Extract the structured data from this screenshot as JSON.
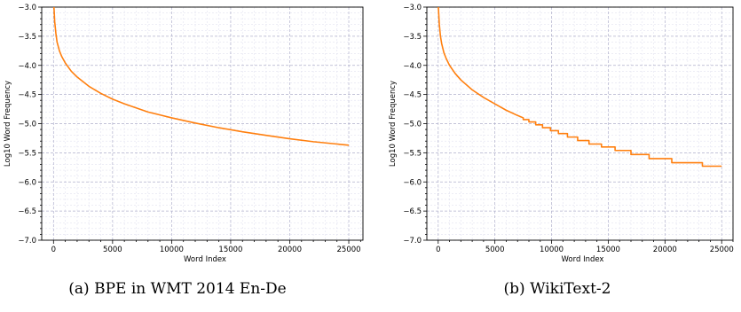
{
  "colors": {
    "line": "#ff7f0e",
    "major_grid": "#b0b0cc",
    "minor_grid": "#e2e2f0",
    "axis": "#000000"
  },
  "chart_data": [
    {
      "type": "line",
      "caption": "(a) BPE in WMT 2014 En-De",
      "xlabel": "Word Index",
      "ylabel": "Log10 Word Frequency",
      "xlim": [
        -1000,
        26200
      ],
      "ylim": [
        -7.0,
        -3.0
      ],
      "xticks": [
        0,
        5000,
        10000,
        15000,
        20000,
        25000
      ],
      "xtick_labels": [
        "0",
        "5000",
        "10000",
        "15000",
        "20000",
        "25000"
      ],
      "yticks": [
        -7.0,
        -6.5,
        -6.0,
        -5.5,
        -5.0,
        -4.5,
        -4.0,
        -3.5,
        -3.0
      ],
      "ytick_labels": [
        "−7.0",
        "−6.5",
        "−6.0",
        "−5.5",
        "−5.0",
        "−4.5",
        "−4.0",
        "−3.5",
        "−3.0"
      ],
      "grid": true,
      "series": [
        {
          "x": [
            0,
            50,
            100,
            200,
            300,
            500,
            700,
            1000,
            1500,
            2000,
            3000,
            4000,
            5000,
            6000,
            7000,
            8000,
            9000,
            10000,
            12000,
            14000,
            16000,
            18000,
            20000,
            22000,
            24000,
            25000
          ],
          "y": [
            -2.9,
            -3.05,
            -3.25,
            -3.45,
            -3.6,
            -3.75,
            -3.85,
            -3.96,
            -4.1,
            -4.2,
            -4.36,
            -4.48,
            -4.58,
            -4.66,
            -4.73,
            -4.8,
            -4.85,
            -4.9,
            -4.99,
            -5.07,
            -5.14,
            -5.2,
            -5.26,
            -5.31,
            -5.35,
            -5.37
          ]
        }
      ]
    },
    {
      "type": "line",
      "caption": "(b) WikiText-2",
      "xlabel": "Word Index",
      "ylabel": "Log10 Word Frequency",
      "xlim": [
        -1000,
        26000
      ],
      "ylim": [
        -7.0,
        -3.0
      ],
      "xticks": [
        0,
        5000,
        10000,
        15000,
        20000,
        25000
      ],
      "xtick_labels": [
        "0",
        "5000",
        "10000",
        "15000",
        "20000",
        "25000"
      ],
      "yticks": [
        -7.0,
        -6.5,
        -6.0,
        -5.5,
        -5.0,
        -4.5,
        -4.0,
        -3.5,
        -3.0
      ],
      "ytick_labels": [
        "−7.0",
        "−6.5",
        "−6.0",
        "−5.5",
        "−5.0",
        "−4.5",
        "−4.0",
        "−3.5",
        "−3.0"
      ],
      "grid": true,
      "series": [
        {
          "x": [
            0,
            100,
            200,
            300,
            500,
            700,
            1000,
            1500,
            2000,
            3000,
            4000,
            5000,
            6000,
            7000,
            7500,
            7500,
            8000,
            8000,
            8600,
            8600,
            9200,
            9200,
            9900,
            9900,
            10600,
            10600,
            11400,
            11400,
            12300,
            12300,
            13300,
            13300,
            14400,
            14400,
            15600,
            15600,
            17000,
            17000,
            18600,
            18600,
            20600,
            20600,
            23300,
            23300,
            25000
          ],
          "y": [
            -2.95,
            -3.3,
            -3.5,
            -3.62,
            -3.78,
            -3.88,
            -4.0,
            -4.14,
            -4.25,
            -4.42,
            -4.55,
            -4.66,
            -4.77,
            -4.86,
            -4.9,
            -4.93,
            -4.93,
            -4.97,
            -4.97,
            -5.02,
            -5.02,
            -5.07,
            -5.07,
            -5.12,
            -5.12,
            -5.17,
            -5.17,
            -5.23,
            -5.23,
            -5.29,
            -5.29,
            -5.35,
            -5.35,
            -5.4,
            -5.4,
            -5.46,
            -5.46,
            -5.53,
            -5.53,
            -5.6,
            -5.6,
            -5.67,
            -5.67,
            -5.73,
            -5.73
          ]
        }
      ]
    }
  ]
}
